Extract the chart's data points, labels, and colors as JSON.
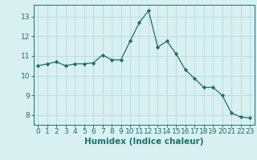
{
  "x": [
    0,
    1,
    2,
    3,
    4,
    5,
    6,
    7,
    8,
    9,
    10,
    11,
    12,
    13,
    14,
    15,
    16,
    17,
    18,
    19,
    20,
    21,
    22,
    23
  ],
  "y": [
    10.5,
    10.6,
    10.7,
    10.5,
    10.6,
    10.6,
    10.65,
    11.05,
    10.8,
    10.8,
    11.75,
    12.7,
    13.3,
    11.45,
    11.75,
    11.1,
    10.3,
    9.85,
    9.4,
    9.4,
    9.0,
    8.1,
    7.9,
    7.85
  ],
  "line_color": "#1a7070",
  "marker": "D",
  "marker_size": 2.2,
  "bg_color": "#d9f0f0",
  "grid_color": "#b8d8d8",
  "xlabel": "Humidex (Indice chaleur)",
  "ylim": [
    7.5,
    13.6
  ],
  "xlim": [
    -0.5,
    23.5
  ],
  "yticks": [
    8,
    9,
    10,
    11,
    12,
    13
  ],
  "xticks": [
    0,
    1,
    2,
    3,
    4,
    5,
    6,
    7,
    8,
    9,
    10,
    11,
    12,
    13,
    14,
    15,
    16,
    17,
    18,
    19,
    20,
    21,
    22,
    23
  ],
  "tick_color": "#1a7070",
  "label_color": "#1a7070",
  "tick_fontsize": 6.5,
  "xlabel_fontsize": 7.5
}
